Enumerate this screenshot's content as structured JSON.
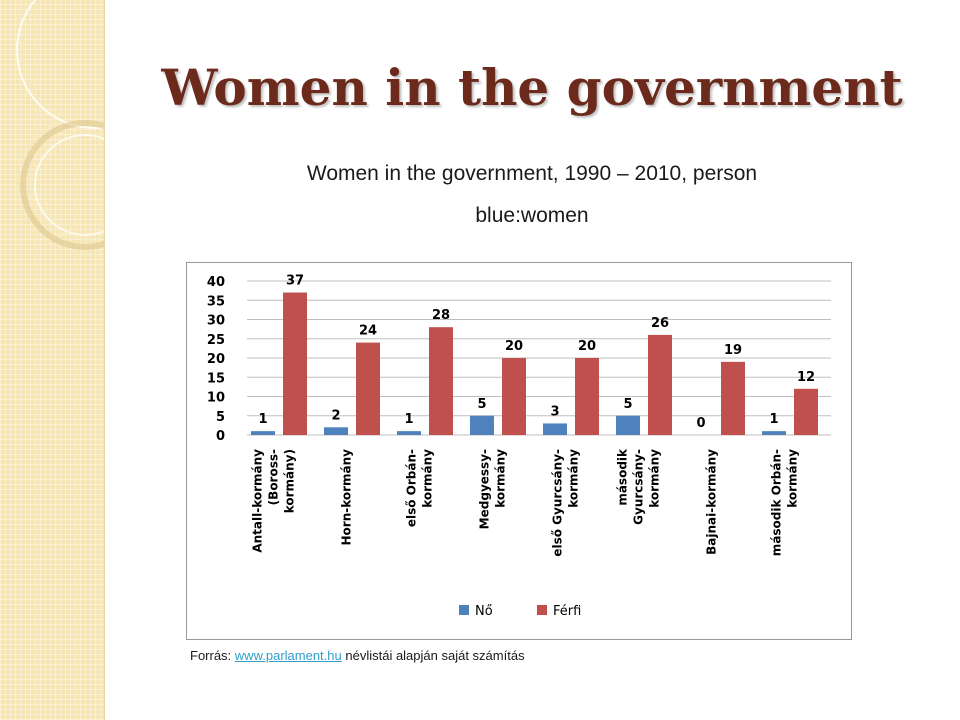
{
  "slide": {
    "title": "Women in the government",
    "subtitle": "Women in the government, 1990 – 2010, person",
    "note": "blue:women"
  },
  "source": {
    "prefix": "Forrás: ",
    "link_text": "www.parlament.hu",
    "suffix": " névlistái alapján saját számítás"
  },
  "colors": {
    "title": "#6b2a1c",
    "women": "#4f81bd",
    "men": "#c0504d",
    "side_panel": "#f6e6b6"
  },
  "chart_data": {
    "type": "bar",
    "categories": [
      [
        "Antall-kormány",
        "(Boross-",
        "kormány)"
      ],
      [
        "Horn-kormány"
      ],
      [
        "első Orbán-",
        "kormány"
      ],
      [
        "Medgyessy-",
        "kormány"
      ],
      [
        "első Gyurcsány-",
        "kormány"
      ],
      [
        "második",
        "Gyurcsány-",
        "kormány"
      ],
      [
        "Bajnai-kormány"
      ],
      [
        "második Orbán-",
        "kormány"
      ]
    ],
    "series": [
      {
        "name": "Nő",
        "color": "#4f81bd",
        "values": [
          1,
          2,
          1,
          5,
          3,
          5,
          0,
          1
        ]
      },
      {
        "name": "Férfi",
        "color": "#c0504d",
        "values": [
          37,
          24,
          28,
          20,
          20,
          26,
          19,
          12
        ]
      }
    ],
    "yticks": [
      0,
      5,
      10,
      15,
      20,
      25,
      30,
      35,
      40
    ],
    "ylim": [
      0,
      40
    ],
    "grid": true,
    "legend_position": "bottom"
  }
}
